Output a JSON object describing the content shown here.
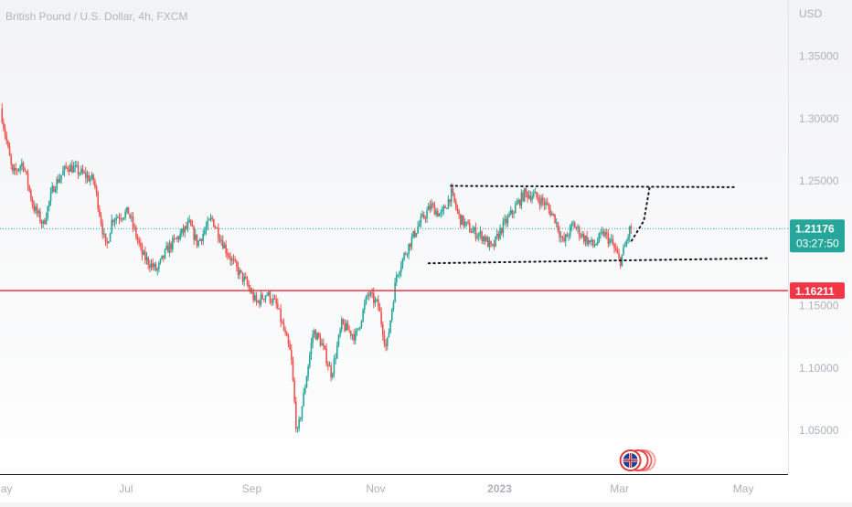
{
  "chart_data": {
    "type": "candlestick",
    "title": "British Pound / U.S. Dollar, 4h, FXCM",
    "currency_label": "USD",
    "y_ticks": [
      {
        "label": "1.35000",
        "value": 1.35
      },
      {
        "label": "1.30000",
        "value": 1.3
      },
      {
        "label": "1.25000",
        "value": 1.25
      },
      {
        "label": "1.15000",
        "value": 1.15
      },
      {
        "label": "1.10000",
        "value": 1.1
      },
      {
        "label": "1.05000",
        "value": 1.05
      }
    ],
    "x_ticks": [
      {
        "label": "May",
        "t": 0,
        "bold": false
      },
      {
        "label": "Jul",
        "t": 61,
        "bold": false
      },
      {
        "label": "Sep",
        "t": 123,
        "bold": false
      },
      {
        "label": "Nov",
        "t": 184,
        "bold": false
      },
      {
        "label": "2023",
        "t": 245,
        "bold": true
      },
      {
        "label": "Mar",
        "t": 304,
        "bold": false
      },
      {
        "label": "May",
        "t": 365,
        "bold": false
      }
    ],
    "ylim": [
      1.015,
      1.395
    ],
    "xlim_days": [
      -1,
      387
    ],
    "current_price": {
      "label": "1.21176",
      "value": 1.21176,
      "countdown": "03:27:50",
      "color": "#26a69a"
    },
    "horizontal_level": {
      "label": "1.16211",
      "value": 1.16211,
      "color": "#f23645"
    },
    "colors": {
      "up": "#26a69a",
      "down": "#ef5350"
    },
    "anchors": [
      {
        "t": 0,
        "p": 1.308
      },
      {
        "t": 6,
        "p": 1.255
      },
      {
        "t": 11,
        "p": 1.265
      },
      {
        "t": 16,
        "p": 1.23
      },
      {
        "t": 21,
        "p": 1.215
      },
      {
        "t": 26,
        "p": 1.245
      },
      {
        "t": 33,
        "p": 1.262
      },
      {
        "t": 38,
        "p": 1.258
      },
      {
        "t": 46,
        "p": 1.25
      },
      {
        "t": 52,
        "p": 1.195
      },
      {
        "t": 55,
        "p": 1.22
      },
      {
        "t": 63,
        "p": 1.225
      },
      {
        "t": 70,
        "p": 1.19
      },
      {
        "t": 77,
        "p": 1.178
      },
      {
        "t": 82,
        "p": 1.195
      },
      {
        "t": 93,
        "p": 1.215
      },
      {
        "t": 97,
        "p": 1.2
      },
      {
        "t": 104,
        "p": 1.22
      },
      {
        "t": 111,
        "p": 1.195
      },
      {
        "t": 116,
        "p": 1.18
      },
      {
        "t": 121,
        "p": 1.168
      },
      {
        "t": 126,
        "p": 1.152
      },
      {
        "t": 131,
        "p": 1.16
      },
      {
        "t": 136,
        "p": 1.15
      },
      {
        "t": 143,
        "p": 1.11
      },
      {
        "t": 146,
        "p": 1.045
      },
      {
        "t": 149,
        "p": 1.075
      },
      {
        "t": 154,
        "p": 1.13
      },
      {
        "t": 158,
        "p": 1.12
      },
      {
        "t": 163,
        "p": 1.095
      },
      {
        "t": 168,
        "p": 1.135
      },
      {
        "t": 175,
        "p": 1.125
      },
      {
        "t": 181,
        "p": 1.16
      },
      {
        "t": 186,
        "p": 1.15
      },
      {
        "t": 190,
        "p": 1.115
      },
      {
        "t": 195,
        "p": 1.175
      },
      {
        "t": 200,
        "p": 1.195
      },
      {
        "t": 206,
        "p": 1.215
      },
      {
        "t": 212,
        "p": 1.23
      },
      {
        "t": 217,
        "p": 1.222
      },
      {
        "t": 222,
        "p": 1.24
      },
      {
        "t": 226,
        "p": 1.22
      },
      {
        "t": 232,
        "p": 1.21
      },
      {
        "t": 238,
        "p": 1.205
      },
      {
        "t": 242,
        "p": 1.195
      },
      {
        "t": 246,
        "p": 1.21
      },
      {
        "t": 252,
        "p": 1.225
      },
      {
        "t": 258,
        "p": 1.24
      },
      {
        "t": 263,
        "p": 1.238
      },
      {
        "t": 268,
        "p": 1.232
      },
      {
        "t": 273,
        "p": 1.22
      },
      {
        "t": 277,
        "p": 1.2
      },
      {
        "t": 282,
        "p": 1.215
      },
      {
        "t": 287,
        "p": 1.205
      },
      {
        "t": 292,
        "p": 1.198
      },
      {
        "t": 297,
        "p": 1.208
      },
      {
        "t": 301,
        "p": 1.2
      },
      {
        "t": 305,
        "p": 1.185
      },
      {
        "t": 308,
        "p": 1.2
      },
      {
        "t": 310,
        "p": 1.212
      }
    ],
    "drawings": {
      "upper_line": [
        {
          "t": 221,
          "p": 1.246
        },
        {
          "t": 362,
          "p": 1.245
        }
      ],
      "lower_line": [
        {
          "t": 210,
          "p": 1.184
        },
        {
          "t": 377,
          "p": 1.188
        }
      ],
      "projection": [
        {
          "t": 310,
          "p": 1.202
        },
        {
          "t": 316,
          "p": 1.218
        },
        {
          "t": 319,
          "p": 1.246
        }
      ]
    }
  }
}
